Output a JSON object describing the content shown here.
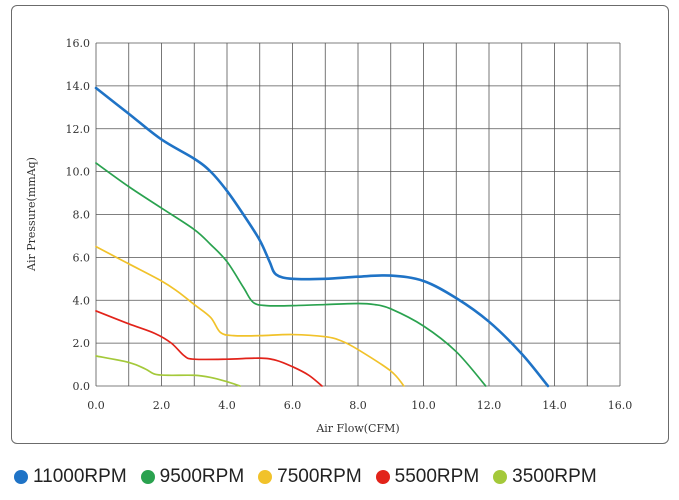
{
  "chart_data": {
    "type": "line",
    "title": "",
    "xlabel": "Air Flow(CFM)",
    "ylabel": "Air Pressure(mmAq)",
    "xlim": [
      0,
      16
    ],
    "ylim": [
      0,
      16
    ],
    "x_ticks": [
      "0.0",
      "2.0",
      "4.0",
      "6.0",
      "8.0",
      "10.0",
      "12.0",
      "14.0",
      "16.0"
    ],
    "y_ticks": [
      "0.0",
      "2.0",
      "4.0",
      "6.0",
      "8.0",
      "10.0",
      "12.0",
      "14.0",
      "16.0"
    ],
    "grid": true,
    "legend_position": "bottom",
    "series": [
      {
        "name": "11000RPM",
        "color": "#1f73c6",
        "points": [
          [
            0,
            13.9
          ],
          [
            1.0,
            12.7
          ],
          [
            2.0,
            11.5
          ],
          [
            3.0,
            10.6
          ],
          [
            3.5,
            10.0
          ],
          [
            4.0,
            9.1
          ],
          [
            4.5,
            8.0
          ],
          [
            5.0,
            6.8
          ],
          [
            5.3,
            5.8
          ],
          [
            5.5,
            5.2
          ],
          [
            6.0,
            5.0
          ],
          [
            7.0,
            5.0
          ],
          [
            8.0,
            5.1
          ],
          [
            9.0,
            5.15
          ],
          [
            10.0,
            4.9
          ],
          [
            11.0,
            4.1
          ],
          [
            12.0,
            3.0
          ],
          [
            13.0,
            1.5
          ],
          [
            13.8,
            0
          ]
        ]
      },
      {
        "name": "9500RPM",
        "color": "#2aa24f",
        "points": [
          [
            0,
            10.4
          ],
          [
            1.0,
            9.3
          ],
          [
            2.0,
            8.3
          ],
          [
            3.0,
            7.3
          ],
          [
            3.5,
            6.6
          ],
          [
            4.0,
            5.8
          ],
          [
            4.5,
            4.6
          ],
          [
            4.8,
            3.9
          ],
          [
            5.2,
            3.75
          ],
          [
            6.0,
            3.75
          ],
          [
            7.0,
            3.8
          ],
          [
            8.0,
            3.85
          ],
          [
            8.5,
            3.8
          ],
          [
            9.0,
            3.6
          ],
          [
            10.0,
            2.8
          ],
          [
            11.0,
            1.6
          ],
          [
            11.9,
            0
          ]
        ]
      },
      {
        "name": "7500RPM",
        "color": "#f1c22a",
        "points": [
          [
            0,
            6.5
          ],
          [
            1.0,
            5.7
          ],
          [
            2.0,
            4.9
          ],
          [
            2.5,
            4.4
          ],
          [
            3.0,
            3.8
          ],
          [
            3.5,
            3.2
          ],
          [
            3.8,
            2.5
          ],
          [
            4.2,
            2.35
          ],
          [
            5.0,
            2.35
          ],
          [
            6.0,
            2.4
          ],
          [
            7.0,
            2.3
          ],
          [
            7.5,
            2.1
          ],
          [
            8.0,
            1.7
          ],
          [
            9.0,
            0.7
          ],
          [
            9.4,
            0
          ]
        ]
      },
      {
        "name": "5500RPM",
        "color": "#e2231a",
        "points": [
          [
            0,
            3.5
          ],
          [
            1.0,
            2.9
          ],
          [
            1.8,
            2.45
          ],
          [
            2.3,
            2.0
          ],
          [
            2.7,
            1.4
          ],
          [
            3.0,
            1.25
          ],
          [
            4.0,
            1.25
          ],
          [
            5.0,
            1.3
          ],
          [
            5.5,
            1.2
          ],
          [
            6.0,
            0.9
          ],
          [
            6.5,
            0.5
          ],
          [
            6.9,
            0
          ]
        ]
      },
      {
        "name": "3500RPM",
        "color": "#a4c93a",
        "points": [
          [
            0,
            1.4
          ],
          [
            1.0,
            1.1
          ],
          [
            1.5,
            0.8
          ],
          [
            1.8,
            0.55
          ],
          [
            2.2,
            0.5
          ],
          [
            3.0,
            0.5
          ],
          [
            3.5,
            0.4
          ],
          [
            4.0,
            0.2
          ],
          [
            4.4,
            0
          ]
        ]
      }
    ]
  }
}
